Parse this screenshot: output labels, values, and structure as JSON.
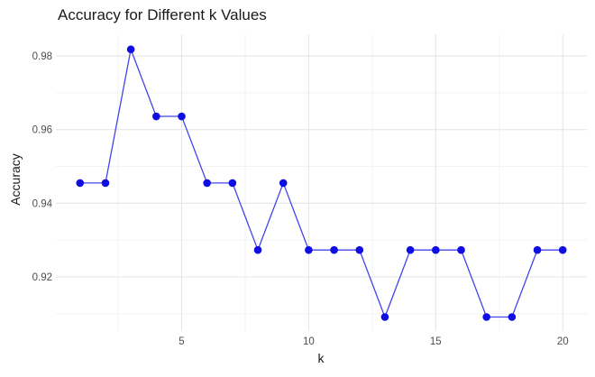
{
  "chart_data": {
    "type": "line",
    "title": "Accuracy for Different k Values",
    "xlabel": "k",
    "ylabel": "Accuracy",
    "x": [
      1,
      2,
      3,
      4,
      5,
      6,
      7,
      8,
      9,
      10,
      11,
      12,
      13,
      14,
      15,
      16,
      17,
      18,
      19,
      20
    ],
    "y": [
      0.9455,
      0.9455,
      0.9818,
      0.9636,
      0.9636,
      0.9455,
      0.9455,
      0.9273,
      0.9455,
      0.9273,
      0.9273,
      0.9273,
      0.9091,
      0.9273,
      0.9273,
      0.9273,
      0.9091,
      0.9091,
      0.9273,
      0.9273
    ],
    "xlim": [
      0.05,
      20.95
    ],
    "ylim": [
      0.9053,
      0.9859
    ],
    "xticks": {
      "values": [
        5,
        10,
        15,
        20
      ],
      "labels": [
        "5",
        "10",
        "15",
        "20"
      ]
    },
    "yticks": {
      "values": [
        0.92,
        0.94,
        0.96,
        0.98
      ],
      "labels": [
        "0.92",
        "0.94",
        "0.96",
        "0.98"
      ]
    },
    "xticks_minor": [
      2.5,
      7.5,
      12.5,
      17.5
    ],
    "yticks_minor": [
      0.91,
      0.93,
      0.95,
      0.97
    ],
    "grid": true,
    "legend": "none",
    "colors": {
      "series": "#0000ff",
      "point_fill": "#0d0de4",
      "line_stroke": "#4444ee",
      "grid_major": "#e6e6e6",
      "grid_minor": "#f2f2f2",
      "tick_text": "#4d4d4d",
      "title_text": "#1a1a1a",
      "background": "#ffffff"
    }
  }
}
